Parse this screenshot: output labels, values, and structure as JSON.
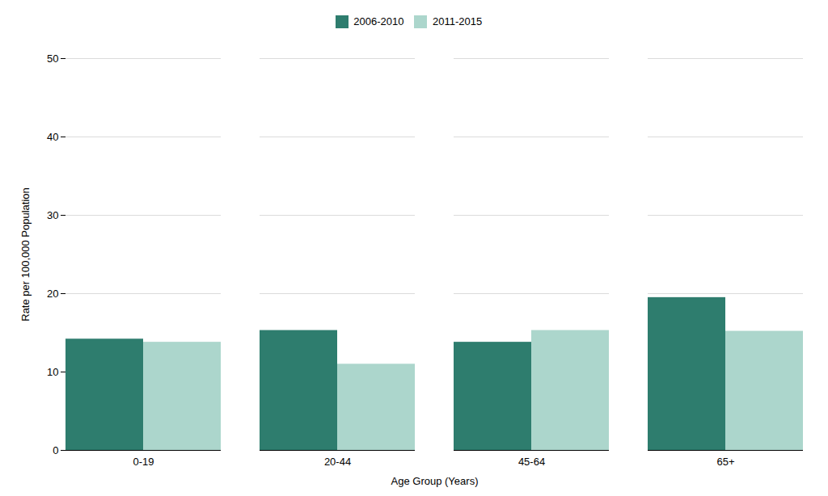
{
  "chart_data": {
    "type": "bar",
    "categories": [
      "0-19",
      "20-44",
      "45-64",
      "65+"
    ],
    "series": [
      {
        "name": "2006-2010",
        "color": "#2e7d6e",
        "values": [
          14.2,
          15.3,
          13.8,
          19.5
        ]
      },
      {
        "name": "2011-2015",
        "color": "#acd6cc",
        "values": [
          13.8,
          11.0,
          15.3,
          15.2
        ]
      }
    ],
    "xlabel": "Age Group (Years)",
    "ylabel": "Rate per 100,000 Population",
    "ylim": [
      0,
      50
    ],
    "yticks": [
      0,
      10,
      20,
      30,
      40,
      50
    ],
    "grid": true,
    "legend": "top"
  }
}
